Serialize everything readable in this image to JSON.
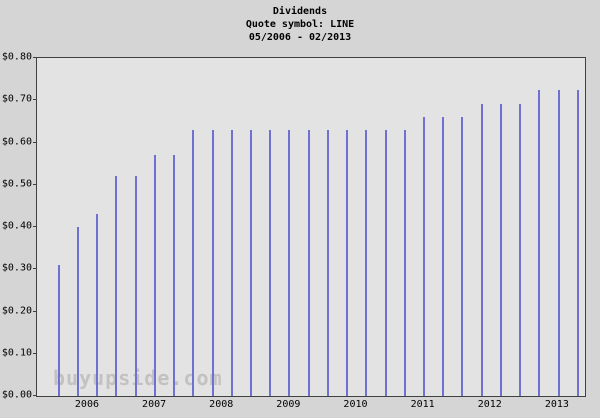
{
  "header": {
    "title": "Dividends",
    "subtitle": "Quote symbol: LINE",
    "date_range": "05/2006 - 02/2013"
  },
  "watermark": "buyupside.com",
  "chart_data": {
    "type": "bar",
    "title": "Dividends",
    "subtitle": "Quote symbol: LINE",
    "date_range": "05/2006 - 02/2013",
    "x": [
      "05/2006",
      "08/2006",
      "11/2006",
      "02/2007",
      "05/2007",
      "08/2007",
      "11/2007",
      "02/2008",
      "05/2008",
      "08/2008",
      "11/2008",
      "02/2009",
      "05/2009",
      "08/2009",
      "11/2009",
      "02/2010",
      "05/2010",
      "08/2010",
      "11/2010",
      "02/2011",
      "05/2011",
      "08/2011",
      "11/2011",
      "02/2012",
      "05/2012",
      "08/2012",
      "11/2012",
      "02/2013"
    ],
    "values": [
      0.31,
      0.4,
      0.43,
      0.52,
      0.52,
      0.57,
      0.57,
      0.63,
      0.63,
      0.63,
      0.63,
      0.63,
      0.63,
      0.63,
      0.63,
      0.63,
      0.63,
      0.63,
      0.63,
      0.66,
      0.66,
      0.66,
      0.69,
      0.69,
      0.69,
      0.725,
      0.725,
      0.725
    ],
    "xlabel": "",
    "ylabel": "",
    "ylim": [
      0,
      0.8
    ],
    "y_ticks": [
      "$0.00",
      "$0.10",
      "$0.20",
      "$0.30",
      "$0.40",
      "$0.50",
      "$0.60",
      "$0.70",
      "$0.80"
    ],
    "x_tick_labels": [
      "2006",
      "2007",
      "2008",
      "2009",
      "2010",
      "2011",
      "2012",
      "2013"
    ],
    "bar_color": "#7070d0",
    "grid": false,
    "legend": false
  }
}
